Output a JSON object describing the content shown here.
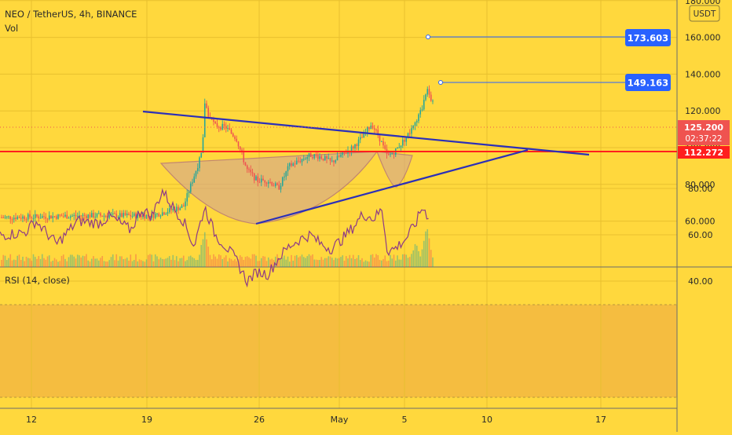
{
  "header": {
    "title": "NEO / TetherUS, 4h, BINANCE",
    "vol_label": "Vol"
  },
  "currency_badge": "USDT",
  "rsi_label": "RSI (14, close)",
  "colors": {
    "background": "#ffd83d",
    "up_candle": "#26a69a",
    "down_candle": "#ef5350",
    "trendline": "#2c2fb8",
    "support_line": "#ff1e1e",
    "price_badge": "#ef5350",
    "target_badge": "#2962ff",
    "rsi_line": "#8e3a86",
    "cup_fill": "#d6a98a",
    "cup_stroke": "#a25a8a"
  },
  "chart_data": [
    {
      "type": "candlestick",
      "title": "NEO / TetherUS, 4h, BINANCE",
      "y_axis": {
        "ticks": [
          "60.000",
          "80.000",
          "100.000",
          "120.000",
          "140.000",
          "160.000",
          "180.000"
        ],
        "ylim": [
          50,
          190
        ]
      },
      "x_axis": {
        "ticks": [
          "12",
          "19",
          "26",
          "May",
          "5",
          "10",
          "17"
        ]
      },
      "price_path": [
        [
          0,
          62
        ],
        [
          8,
          63
        ],
        [
          14,
          63
        ],
        [
          17,
          68
        ],
        [
          18.8,
          98
        ],
        [
          19,
          125
        ],
        [
          19.4,
          117
        ],
        [
          20,
          112
        ],
        [
          21,
          111
        ],
        [
          22,
          105
        ],
        [
          23,
          88
        ],
        [
          24,
          82
        ],
        [
          25,
          82
        ],
        [
          26,
          78
        ],
        [
          27,
          90
        ],
        [
          28,
          93
        ],
        [
          29,
          96
        ],
        [
          30,
          95
        ],
        [
          31,
          92
        ],
        [
          32,
          96
        ],
        [
          33,
          100
        ],
        [
          34,
          106
        ],
        [
          34.8,
          113
        ],
        [
          35.5,
          106
        ],
        [
          36.3,
          95
        ],
        [
          37,
          98
        ],
        [
          38,
          105
        ],
        [
          39,
          113
        ],
        [
          39.6,
          122
        ],
        [
          40,
          132
        ],
        [
          40.3,
          128
        ],
        [
          40.6,
          124
        ]
      ],
      "current_price": {
        "label": "125.200",
        "countdown": "02:37:22"
      },
      "support_level": {
        "label": "112.272",
        "value": 112.272
      },
      "targets": [
        {
          "label": "173.603",
          "value": 173.603
        },
        {
          "label": "149.163",
          "value": 149.163
        }
      ],
      "volume": {
        "spikes": [
          [
            19,
            0.8
          ],
          [
            40,
            0.9
          ],
          [
            39,
            0.55
          ]
        ]
      }
    },
    {
      "type": "line",
      "title": "RSI (14, close)",
      "y_axis": {
        "ticks": [
          "40.00",
          "60.00",
          "80.00"
        ],
        "ylim": [
          25,
          86
        ]
      },
      "band": [
        30,
        70
      ],
      "rsi_path": [
        [
          0,
          60
        ],
        [
          2,
          61
        ],
        [
          3,
          66
        ],
        [
          5,
          56
        ],
        [
          7,
          66
        ],
        [
          9,
          65
        ],
        [
          10,
          68
        ],
        [
          12,
          62
        ],
        [
          13,
          71
        ],
        [
          14,
          68
        ],
        [
          15,
          79
        ],
        [
          16,
          72
        ],
        [
          17,
          66
        ],
        [
          18,
          55
        ],
        [
          19,
          72
        ],
        [
          20,
          60
        ],
        [
          21,
          55
        ],
        [
          22,
          49
        ],
        [
          23,
          40
        ],
        [
          24,
          44
        ],
        [
          25,
          43
        ],
        [
          26,
          50
        ],
        [
          27,
          55
        ],
        [
          28,
          58
        ],
        [
          29,
          60
        ],
        [
          30,
          56
        ],
        [
          31,
          54
        ],
        [
          32,
          58
        ],
        [
          33,
          63
        ],
        [
          34,
          69
        ],
        [
          35,
          67
        ],
        [
          35.8,
          71
        ],
        [
          36.3,
          53
        ],
        [
          37,
          54
        ],
        [
          38,
          58
        ],
        [
          39,
          65
        ],
        [
          39.6,
          72
        ],
        [
          40.3,
          67
        ]
      ]
    }
  ]
}
